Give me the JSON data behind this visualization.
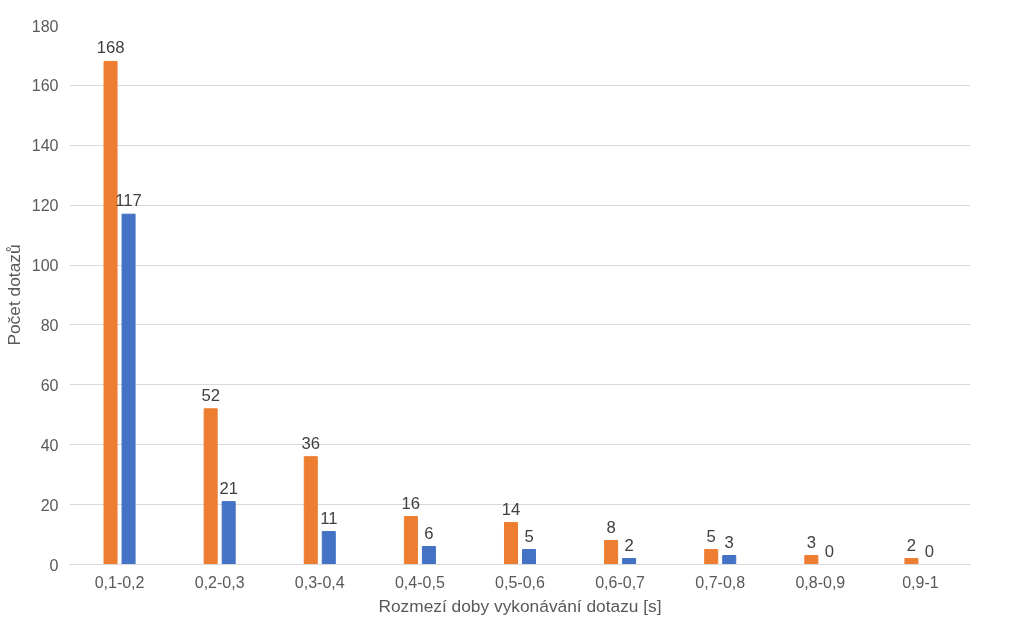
{
  "chart_data": {
    "type": "bar",
    "xlabel": "Rozmezí doby vykonávání dotazu [s]",
    "ylabel": "Počet dotazů",
    "categories": [
      "0,1-0,2",
      "0,2-0,3",
      "0,3-0,4",
      "0,4-0,5",
      "0,5-0,6",
      "0,6-0,7",
      "0,7-0,8",
      "0,8-0,9",
      "0,9-1"
    ],
    "series": [
      {
        "color": "#ed7d31",
        "values": [
          168,
          52,
          36,
          16,
          14,
          8,
          5,
          3,
          2
        ]
      },
      {
        "color": "#4472c4",
        "values": [
          117,
          21,
          11,
          6,
          5,
          2,
          3,
          0,
          0
        ]
      }
    ],
    "ylim": [
      0,
      180
    ],
    "yticks": [
      0,
      20,
      40,
      60,
      80,
      100,
      120,
      140,
      160,
      180
    ],
    "grid": "y",
    "data_labels": true
  }
}
